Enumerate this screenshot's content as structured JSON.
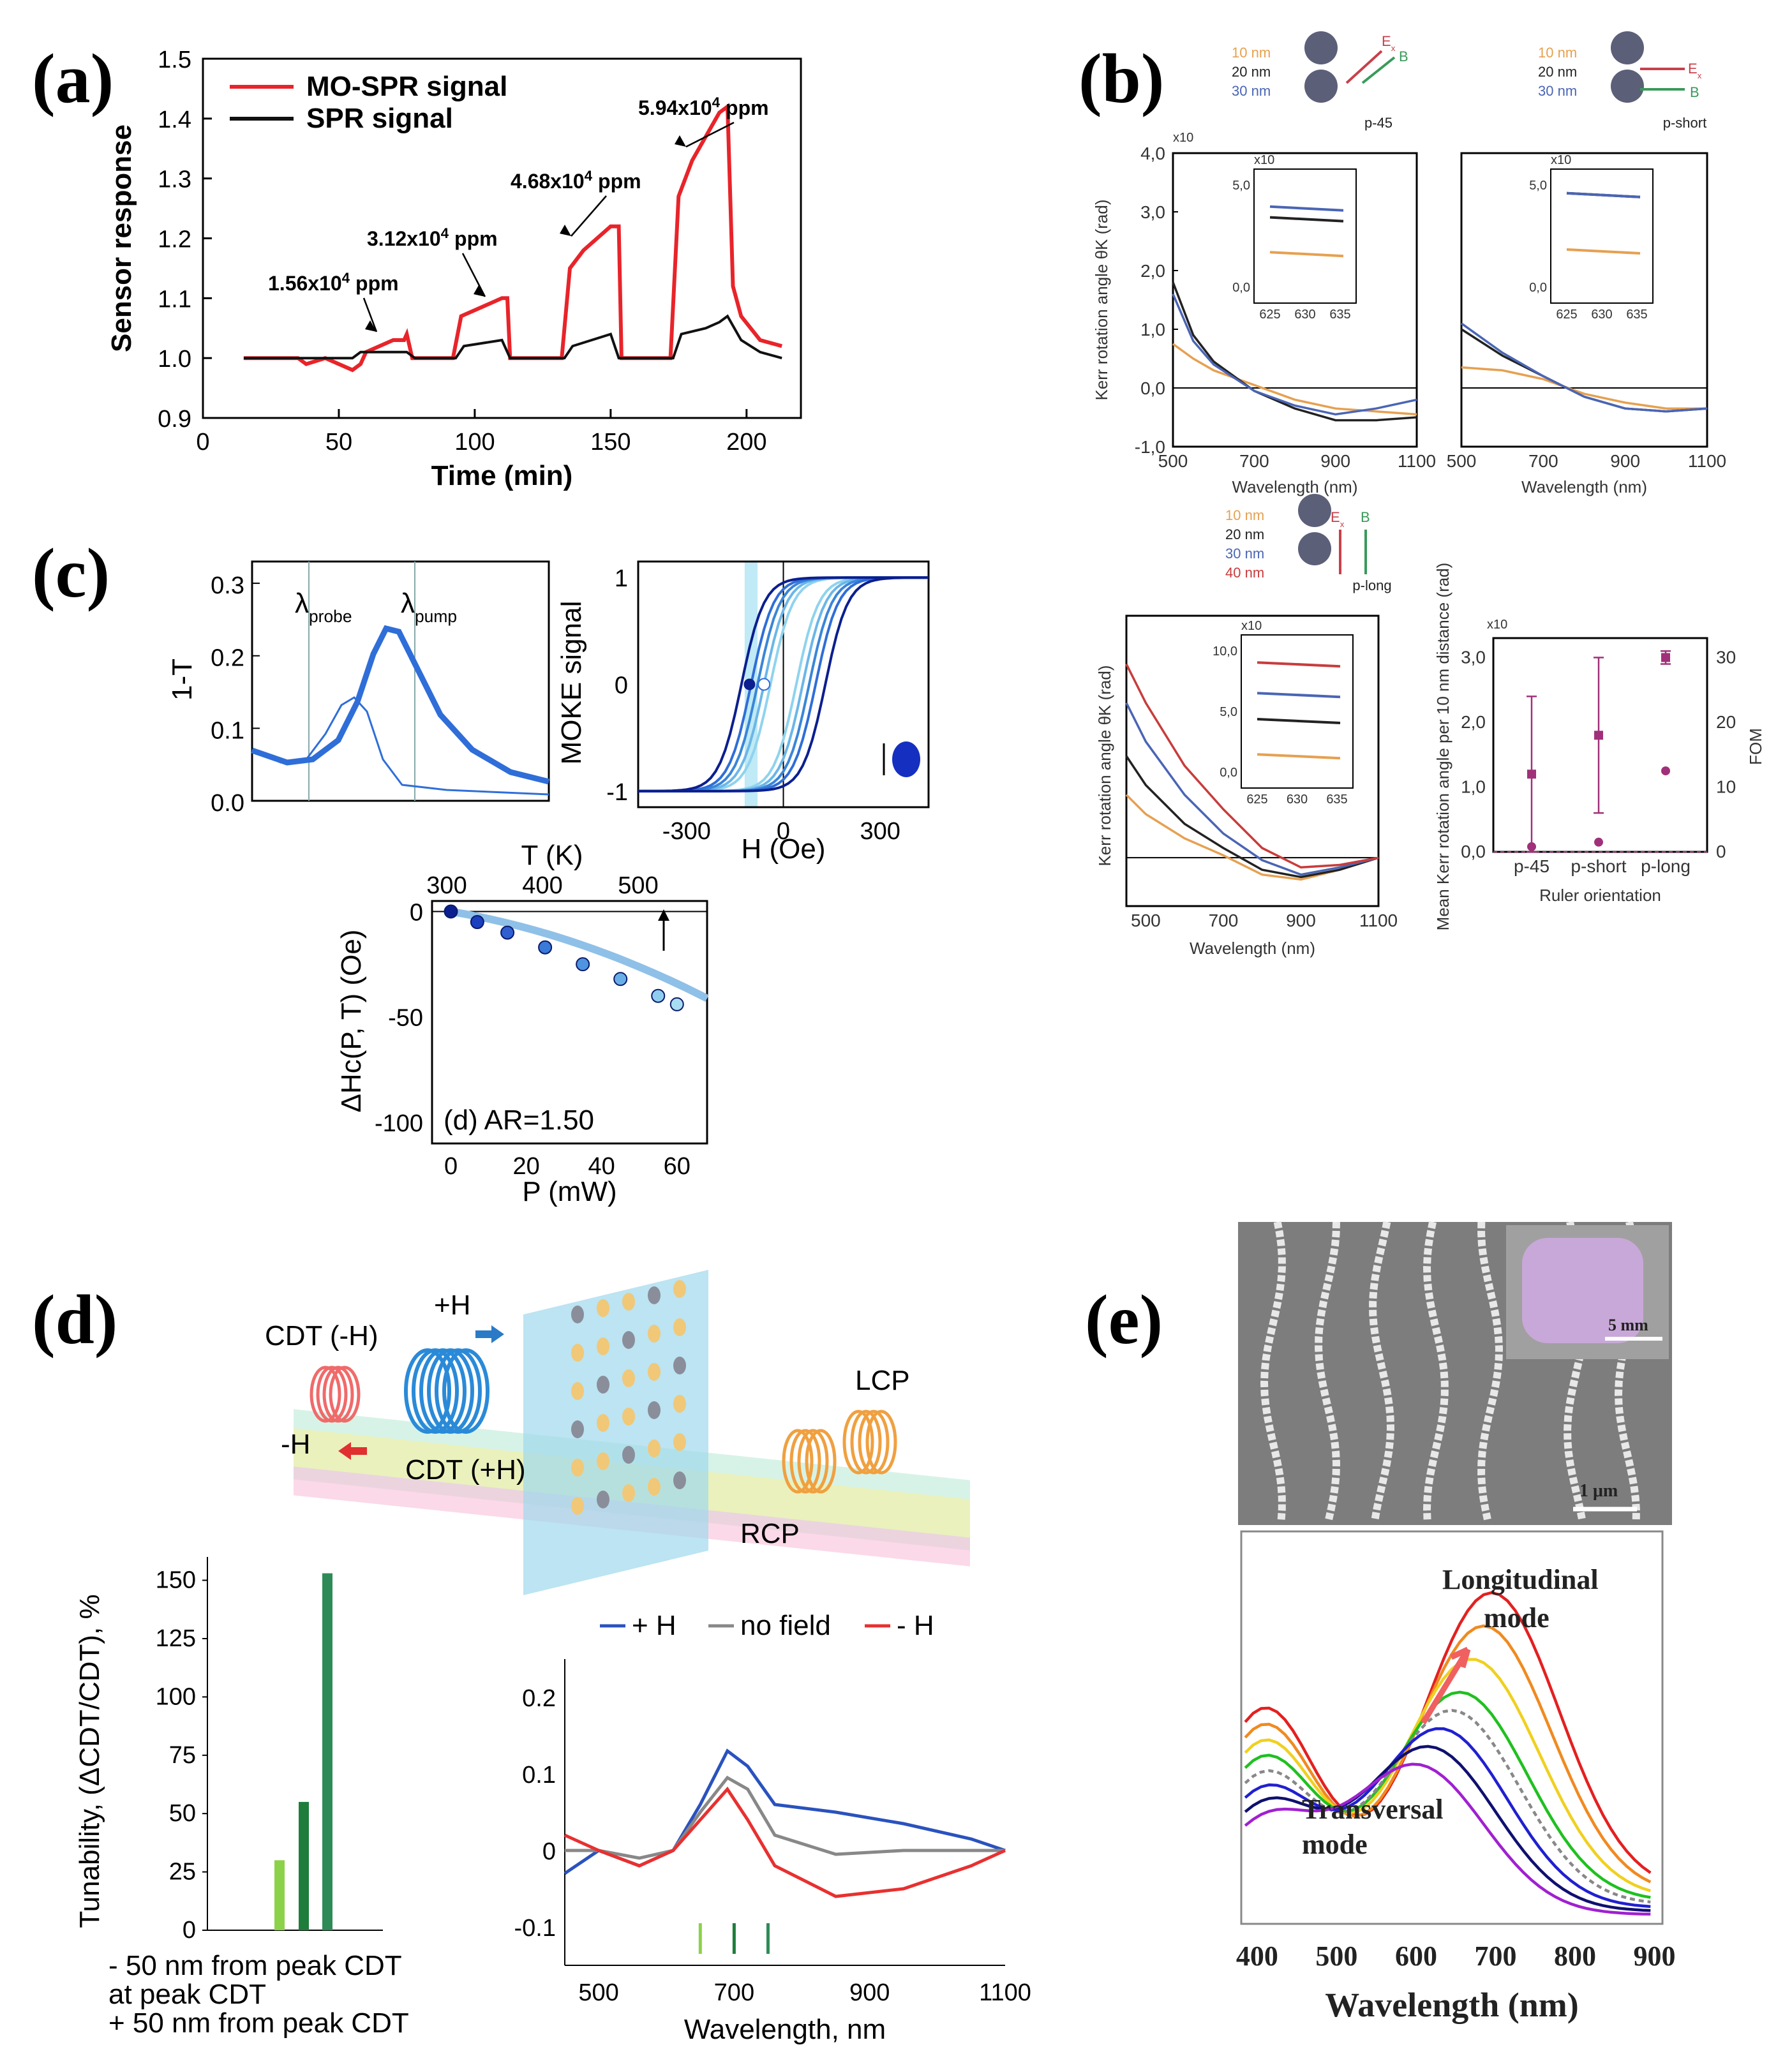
{
  "panel_letters": [
    "(a)",
    "(b)",
    "(c)",
    "(d)",
    "(e)"
  ],
  "colors": {
    "mo_spr": "#e8242a",
    "spr": "#111111",
    "b_orange": "#e6a050",
    "b_black": "#222222",
    "b_blue": "#4a65b5",
    "b_red": "#c83c3c",
    "c_dark": "#0b1f8f",
    "c_mid": "#2f6ed8",
    "c_light": "#8fd3ee",
    "d_plus": "#2a52be",
    "d_none": "#888888",
    "d_minus": "#e83030",
    "d_bar1": "#8cd14a",
    "d_bar2": "#1f7d3b",
    "d_bar3": "#2e8b57",
    "b_magenta": "#a0307a"
  },
  "chart_data": [
    {
      "id": "a",
      "type": "line",
      "xlabel": "Time (min)",
      "ylabel": "Sensor response",
      "xlim": [
        0,
        220
      ],
      "ylim": [
        0.9,
        1.5
      ],
      "xticks": [
        "0",
        "50",
        "100",
        "150",
        "200"
      ],
      "yticks": [
        "0.9",
        "1.0",
        "1.1",
        "1.2",
        "1.3",
        "1.4",
        "1.5"
      ],
      "legend": [
        "MO-SPR signal",
        "SPR signal"
      ],
      "annotations": [
        {
          "label": "1.56x10",
          "sup": "4",
          "unit": " ppm"
        },
        {
          "label": "3.12x10",
          "sup": "4",
          "unit": " ppm"
        },
        {
          "label": "4.68x10",
          "sup": "4",
          "unit": " ppm"
        },
        {
          "label": "5.94x10",
          "sup": "4",
          "unit": " ppm"
        }
      ],
      "series": [
        {
          "name": "MO-SPR signal",
          "x": [
            15,
            35,
            38,
            45,
            55,
            58,
            60,
            65,
            70,
            74,
            75,
            77,
            80,
            92,
            95,
            100,
            105,
            110,
            112,
            113,
            115,
            132,
            135,
            140,
            145,
            150,
            153,
            154,
            157,
            172,
            175,
            180,
            185,
            190,
            193,
            195,
            198,
            205,
            213
          ],
          "y": [
            1.0,
            1.0,
            0.99,
            1.0,
            0.98,
            0.99,
            1.01,
            1.02,
            1.03,
            1.03,
            1.04,
            1.0,
            1.0,
            1.0,
            1.07,
            1.08,
            1.09,
            1.1,
            1.1,
            1.0,
            1.0,
            1.0,
            1.15,
            1.18,
            1.2,
            1.22,
            1.22,
            1.0,
            1.0,
            1.0,
            1.27,
            1.33,
            1.37,
            1.41,
            1.42,
            1.12,
            1.07,
            1.03,
            1.02
          ]
        },
        {
          "name": "SPR signal",
          "x": [
            15,
            55,
            58,
            75,
            78,
            93,
            96,
            110,
            113,
            133,
            136,
            150,
            153,
            173,
            176,
            185,
            190,
            193,
            198,
            205,
            213
          ],
          "y": [
            1.0,
            1.0,
            1.01,
            1.01,
            1.0,
            1.0,
            1.02,
            1.03,
            1.0,
            1.0,
            1.02,
            1.04,
            1.0,
            1.0,
            1.04,
            1.05,
            1.06,
            1.07,
            1.03,
            1.01,
            1.0
          ]
        }
      ]
    },
    {
      "id": "b1",
      "type": "line",
      "ylabel": "Kerr rotation angle θK (rad)",
      "xlabel": "Wavelength (nm)",
      "yexp": "x10-4",
      "xlim": [
        500,
        1100
      ],
      "ylim": [
        -1.0,
        4.0
      ],
      "xticks": [
        "500",
        "700",
        "900",
        "1100"
      ],
      "yticks": [
        "-1,0",
        "0,0",
        "1,0",
        "2,0",
        "3,0",
        "4,0"
      ],
      "legend": [
        "10 nm",
        "20 nm",
        "30 nm"
      ],
      "tag": "p-45",
      "vectors": [
        "E",
        "x",
        "B"
      ],
      "inset": {
        "xticks": [
          "625",
          "630",
          "635"
        ],
        "yticks": [
          "0,0",
          "5,0"
        ],
        "exp": "x10-5"
      },
      "series": [
        {
          "name": "10 nm",
          "x": [
            500,
            550,
            600,
            700,
            800,
            900,
            1000,
            1100
          ],
          "y": [
            0.75,
            0.5,
            0.3,
            0.05,
            -0.2,
            -0.35,
            -0.4,
            -0.45
          ]
        },
        {
          "name": "20 nm",
          "x": [
            500,
            550,
            600,
            700,
            800,
            900,
            1000,
            1100
          ],
          "y": [
            1.8,
            0.9,
            0.45,
            -0.05,
            -0.35,
            -0.55,
            -0.55,
            -0.5
          ]
        },
        {
          "name": "30 nm",
          "x": [
            500,
            550,
            600,
            700,
            800,
            900,
            1000,
            1100
          ],
          "y": [
            1.6,
            0.8,
            0.4,
            -0.05,
            -0.3,
            -0.45,
            -0.35,
            -0.2
          ]
        }
      ]
    },
    {
      "id": "b2",
      "type": "line",
      "xlabel": "Wavelength (nm)",
      "xlim": [
        500,
        1100
      ],
      "ylim": [
        -1.0,
        4.0
      ],
      "xticks": [
        "500",
        "700",
        "900",
        "1100"
      ],
      "legend": [
        "10 nm",
        "20 nm",
        "30 nm"
      ],
      "tag": "p-short",
      "inset": {
        "xticks": [
          "625",
          "630",
          "635"
        ],
        "yticks": [
          "0,0",
          "5,0"
        ],
        "exp": "x10-5"
      },
      "series": [
        {
          "name": "10 nm",
          "x": [
            500,
            600,
            700,
            800,
            900,
            1000,
            1100
          ],
          "y": [
            0.35,
            0.3,
            0.15,
            -0.1,
            -0.25,
            -0.35,
            -0.35
          ]
        },
        {
          "name": "20 nm",
          "x": [
            500,
            600,
            700,
            800,
            900,
            1000,
            1100
          ],
          "y": [
            1.0,
            0.55,
            0.2,
            -0.15,
            -0.35,
            -0.4,
            -0.35
          ]
        },
        {
          "name": "30 nm",
          "x": [
            500,
            600,
            700,
            800,
            900,
            1000,
            1100
          ],
          "y": [
            1.1,
            0.6,
            0.2,
            -0.15,
            -0.35,
            -0.4,
            -0.35
          ]
        }
      ]
    },
    {
      "id": "b3",
      "type": "line",
      "ylabel": "Kerr rotation angle θK (rad)",
      "xlabel": "Wavelength (nm)",
      "xticks": [
        "500",
        "700",
        "900",
        "1100"
      ],
      "legend": [
        "10 nm",
        "20 nm",
        "30 nm",
        "40 nm"
      ],
      "tag": "p-long",
      "inset": {
        "xticks": [
          "625",
          "630",
          "635"
        ],
        "yticks": [
          "0,0",
          "5,0",
          "10,0"
        ],
        "exp": "x10-5"
      },
      "series": [
        {
          "name": "10 nm",
          "x": [
            450,
            500,
            600,
            700,
            800,
            900,
            1000,
            1100
          ],
          "y": [
            1.3,
            0.9,
            0.4,
            0.05,
            -0.35,
            -0.45,
            -0.25,
            0.0
          ]
        },
        {
          "name": "20 nm",
          "x": [
            450,
            500,
            600,
            700,
            800,
            900,
            1000,
            1100
          ],
          "y": [
            2.1,
            1.5,
            0.7,
            0.2,
            -0.25,
            -0.4,
            -0.25,
            0.0
          ]
        },
        {
          "name": "30 nm",
          "x": [
            450,
            500,
            600,
            700,
            800,
            900,
            1000,
            1100
          ],
          "y": [
            3.2,
            2.4,
            1.3,
            0.5,
            -0.05,
            -0.35,
            -0.2,
            0.0
          ]
        },
        {
          "name": "40 nm",
          "x": [
            450,
            500,
            600,
            700,
            800,
            900,
            1000,
            1100
          ],
          "y": [
            4.0,
            3.2,
            1.9,
            1.0,
            0.2,
            -0.2,
            -0.15,
            0.0
          ]
        }
      ]
    },
    {
      "id": "b4",
      "type": "scatter",
      "ylabel": "Mean Kerr rotation angle per 10 nm distance (rad)",
      "y2label": "FOM",
      "xlabel": "Ruler orientation",
      "yexp": "x10-5",
      "categories": [
        "p-45",
        "p-short",
        "p-long"
      ],
      "yticks": [
        "0,0",
        "1,0",
        "2,0",
        "3,0"
      ],
      "y2ticks": [
        "0",
        "10",
        "20",
        "30"
      ],
      "mean": [
        1.2,
        1.8,
        3.0
      ],
      "err_low": [
        0.0,
        0.6,
        2.9
      ],
      "err_high": [
        2.4,
        3.0,
        3.1
      ],
      "fom": [
        0.8,
        1.5,
        12.5
      ]
    },
    {
      "id": "c1",
      "type": "line",
      "ylabel": "1-T",
      "yticks": [
        "0.0",
        "0.1",
        "0.2",
        "0.3"
      ],
      "ylim": [
        0.0,
        0.33
      ],
      "markers": [
        "λ",
        "probe",
        "λ",
        "pump"
      ]
    },
    {
      "id": "c2",
      "type": "line",
      "ylabel": "MOKE signal",
      "xlabel": "H (Oe)",
      "xticks": [
        "-300",
        "0",
        "300"
      ],
      "yticks": [
        "-1",
        "0",
        "1"
      ],
      "xlim": [
        -450,
        450
      ],
      "ylim": [
        -1.15,
        1.15
      ]
    },
    {
      "id": "c3",
      "type": "scatter",
      "xlabel": "P (mW)",
      "ylabel": "ΔHc(P, T) (Oe)",
      "x2label": "T (K)",
      "xticks": [
        "0",
        "20",
        "40",
        "60"
      ],
      "yticks": [
        "0",
        "-50",
        "-100"
      ],
      "x2ticks": [
        "300",
        "400",
        "500"
      ],
      "xlim": [
        -5,
        68
      ],
      "ylim": [
        -110,
        5
      ],
      "note": "(d) AR=1.50",
      "x": [
        0,
        7,
        15,
        25,
        35,
        45,
        55,
        60
      ],
      "y": [
        0,
        -5,
        -10,
        -17,
        -25,
        -32,
        -40,
        -44
      ]
    },
    {
      "id": "d1",
      "type": "bar",
      "ylabel": "Tunability, (ΔCDT/CDT), %",
      "yticks": [
        "0",
        "25",
        "50",
        "75",
        "100",
        "125",
        "150"
      ],
      "ylim": [
        0,
        160
      ],
      "values": [
        30,
        55,
        153
      ],
      "legend": [
        "- 50 nm from peak CDT",
        "at peak CDT",
        "+ 50 nm from peak CDT"
      ]
    },
    {
      "id": "d2",
      "type": "line",
      "xlabel": "Wavelength, nm",
      "xticks": [
        "500",
        "700",
        "900",
        "1100"
      ],
      "yticks": [
        "-0.1",
        "0",
        "0.1",
        "0.2"
      ],
      "xlim": [
        450,
        1100
      ],
      "ylim": [
        -0.15,
        0.25
      ],
      "legend": [
        "+ H",
        "no field",
        "- H"
      ],
      "markers_x": [
        650,
        700,
        750
      ],
      "series": [
        {
          "name": "+ H",
          "x": [
            450,
            500,
            560,
            610,
            650,
            690,
            720,
            760,
            850,
            950,
            1050,
            1100
          ],
          "y": [
            -0.03,
            0.0,
            -0.02,
            0.0,
            0.06,
            0.13,
            0.11,
            0.06,
            0.05,
            0.035,
            0.015,
            0.0
          ]
        },
        {
          "name": "no field",
          "x": [
            450,
            500,
            560,
            610,
            650,
            690,
            720,
            760,
            850,
            950,
            1050,
            1100
          ],
          "y": [
            0.0,
            0.0,
            -0.01,
            0.0,
            0.05,
            0.095,
            0.08,
            0.02,
            -0.005,
            0.0,
            0.0,
            0.0
          ]
        },
        {
          "name": "- H",
          "x": [
            450,
            500,
            560,
            610,
            650,
            690,
            720,
            760,
            850,
            950,
            1050,
            1100
          ],
          "y": [
            0.02,
            0.0,
            -0.02,
            0.0,
            0.04,
            0.08,
            0.04,
            -0.02,
            -0.06,
            -0.05,
            -0.02,
            0.0
          ]
        }
      ]
    },
    {
      "id": "e",
      "type": "line",
      "xlabel": "Wavelength (nm)",
      "xticks": [
        "400",
        "500",
        "600",
        "700",
        "800",
        "900"
      ],
      "labels": [
        "Longitudinal",
        "mode",
        "Transversal",
        "mode"
      ],
      "scale_bars": [
        "5 mm",
        "1 μm"
      ]
    }
  ],
  "schematic_d": {
    "labels": [
      "CDT (-H)",
      "+H",
      "-H",
      "CDT (+H)",
      "LCP",
      "RCP"
    ]
  }
}
